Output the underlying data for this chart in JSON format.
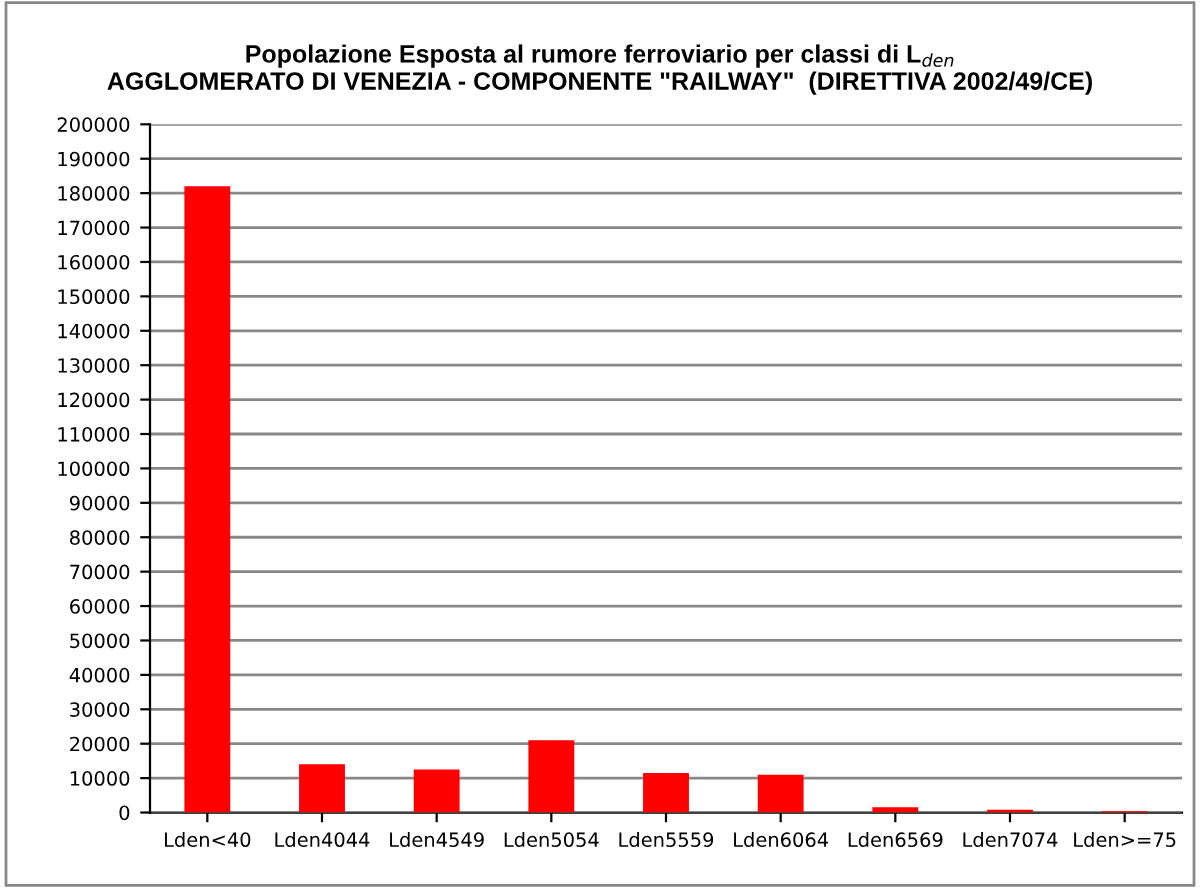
{
  "chart_data": {
    "type": "bar",
    "title": "Popolazione Esposta al rumore ferroviario per classi di L$_{den}$\nAGGLOMERATO DI VENEZIA - COMPONENTE \"RAILWAY\"  (DIRETTIVA 2002/49/CE)",
    "categories": [
      "Lden<40",
      "Lden4044",
      "Lden4549",
      "Lden5054",
      "Lden5559",
      "Lden6064",
      "Lden6569",
      "Lden7074",
      "Lden>=75"
    ],
    "values": [
      182000,
      14000,
      12500,
      21000,
      11500,
      11000,
      1500,
      800,
      400
    ],
    "color": "#ff0000",
    "ylim": [
      0,
      200000
    ],
    "yticks": [
      0,
      10000,
      20000,
      30000,
      40000,
      50000,
      60000,
      70000,
      80000,
      90000,
      100000,
      110000,
      120000,
      130000,
      140000,
      150000,
      160000,
      170000,
      180000,
      190000,
      200000
    ],
    "grid": "y"
  }
}
